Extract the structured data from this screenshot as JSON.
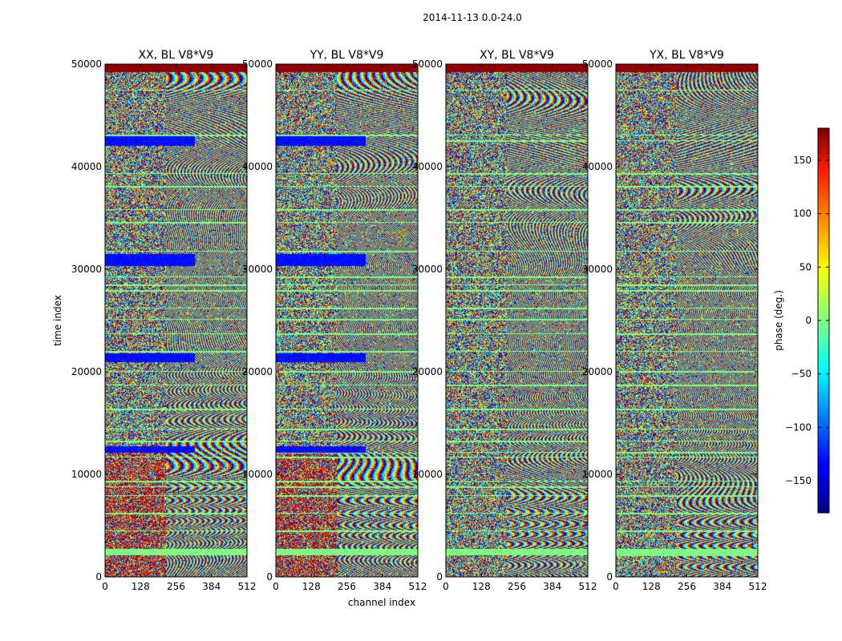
{
  "figure": {
    "suptitle": "2014-11-13 0.0-24.0",
    "xlabel": "channel index",
    "ylabel": "time index"
  },
  "chart_data": {
    "type": "heatmap",
    "title": "2014-11-13 0.0-24.0",
    "xlabel": "channel index",
    "ylabel": "time index",
    "xlim": [
      0,
      512
    ],
    "ylim": [
      0,
      50000
    ],
    "x_ticks": [
      "0",
      "128",
      "256",
      "384",
      "512"
    ],
    "y_ticks": [
      "0",
      "10000",
      "20000",
      "30000",
      "40000",
      "50000"
    ],
    "panels": [
      {
        "title": "XX, BL V8*V9"
      },
      {
        "title": "YY, BL V8*V9"
      },
      {
        "title": "XY, BL V8*V9"
      },
      {
        "title": "YX, BL V8*V9"
      }
    ],
    "colorbar": {
      "label": "phase (deg.)",
      "range": [
        -180,
        180
      ],
      "ticks": [
        "150",
        "100",
        "50",
        "0",
        "−50",
        "−100",
        "−150"
      ],
      "colormap": "jet"
    }
  }
}
